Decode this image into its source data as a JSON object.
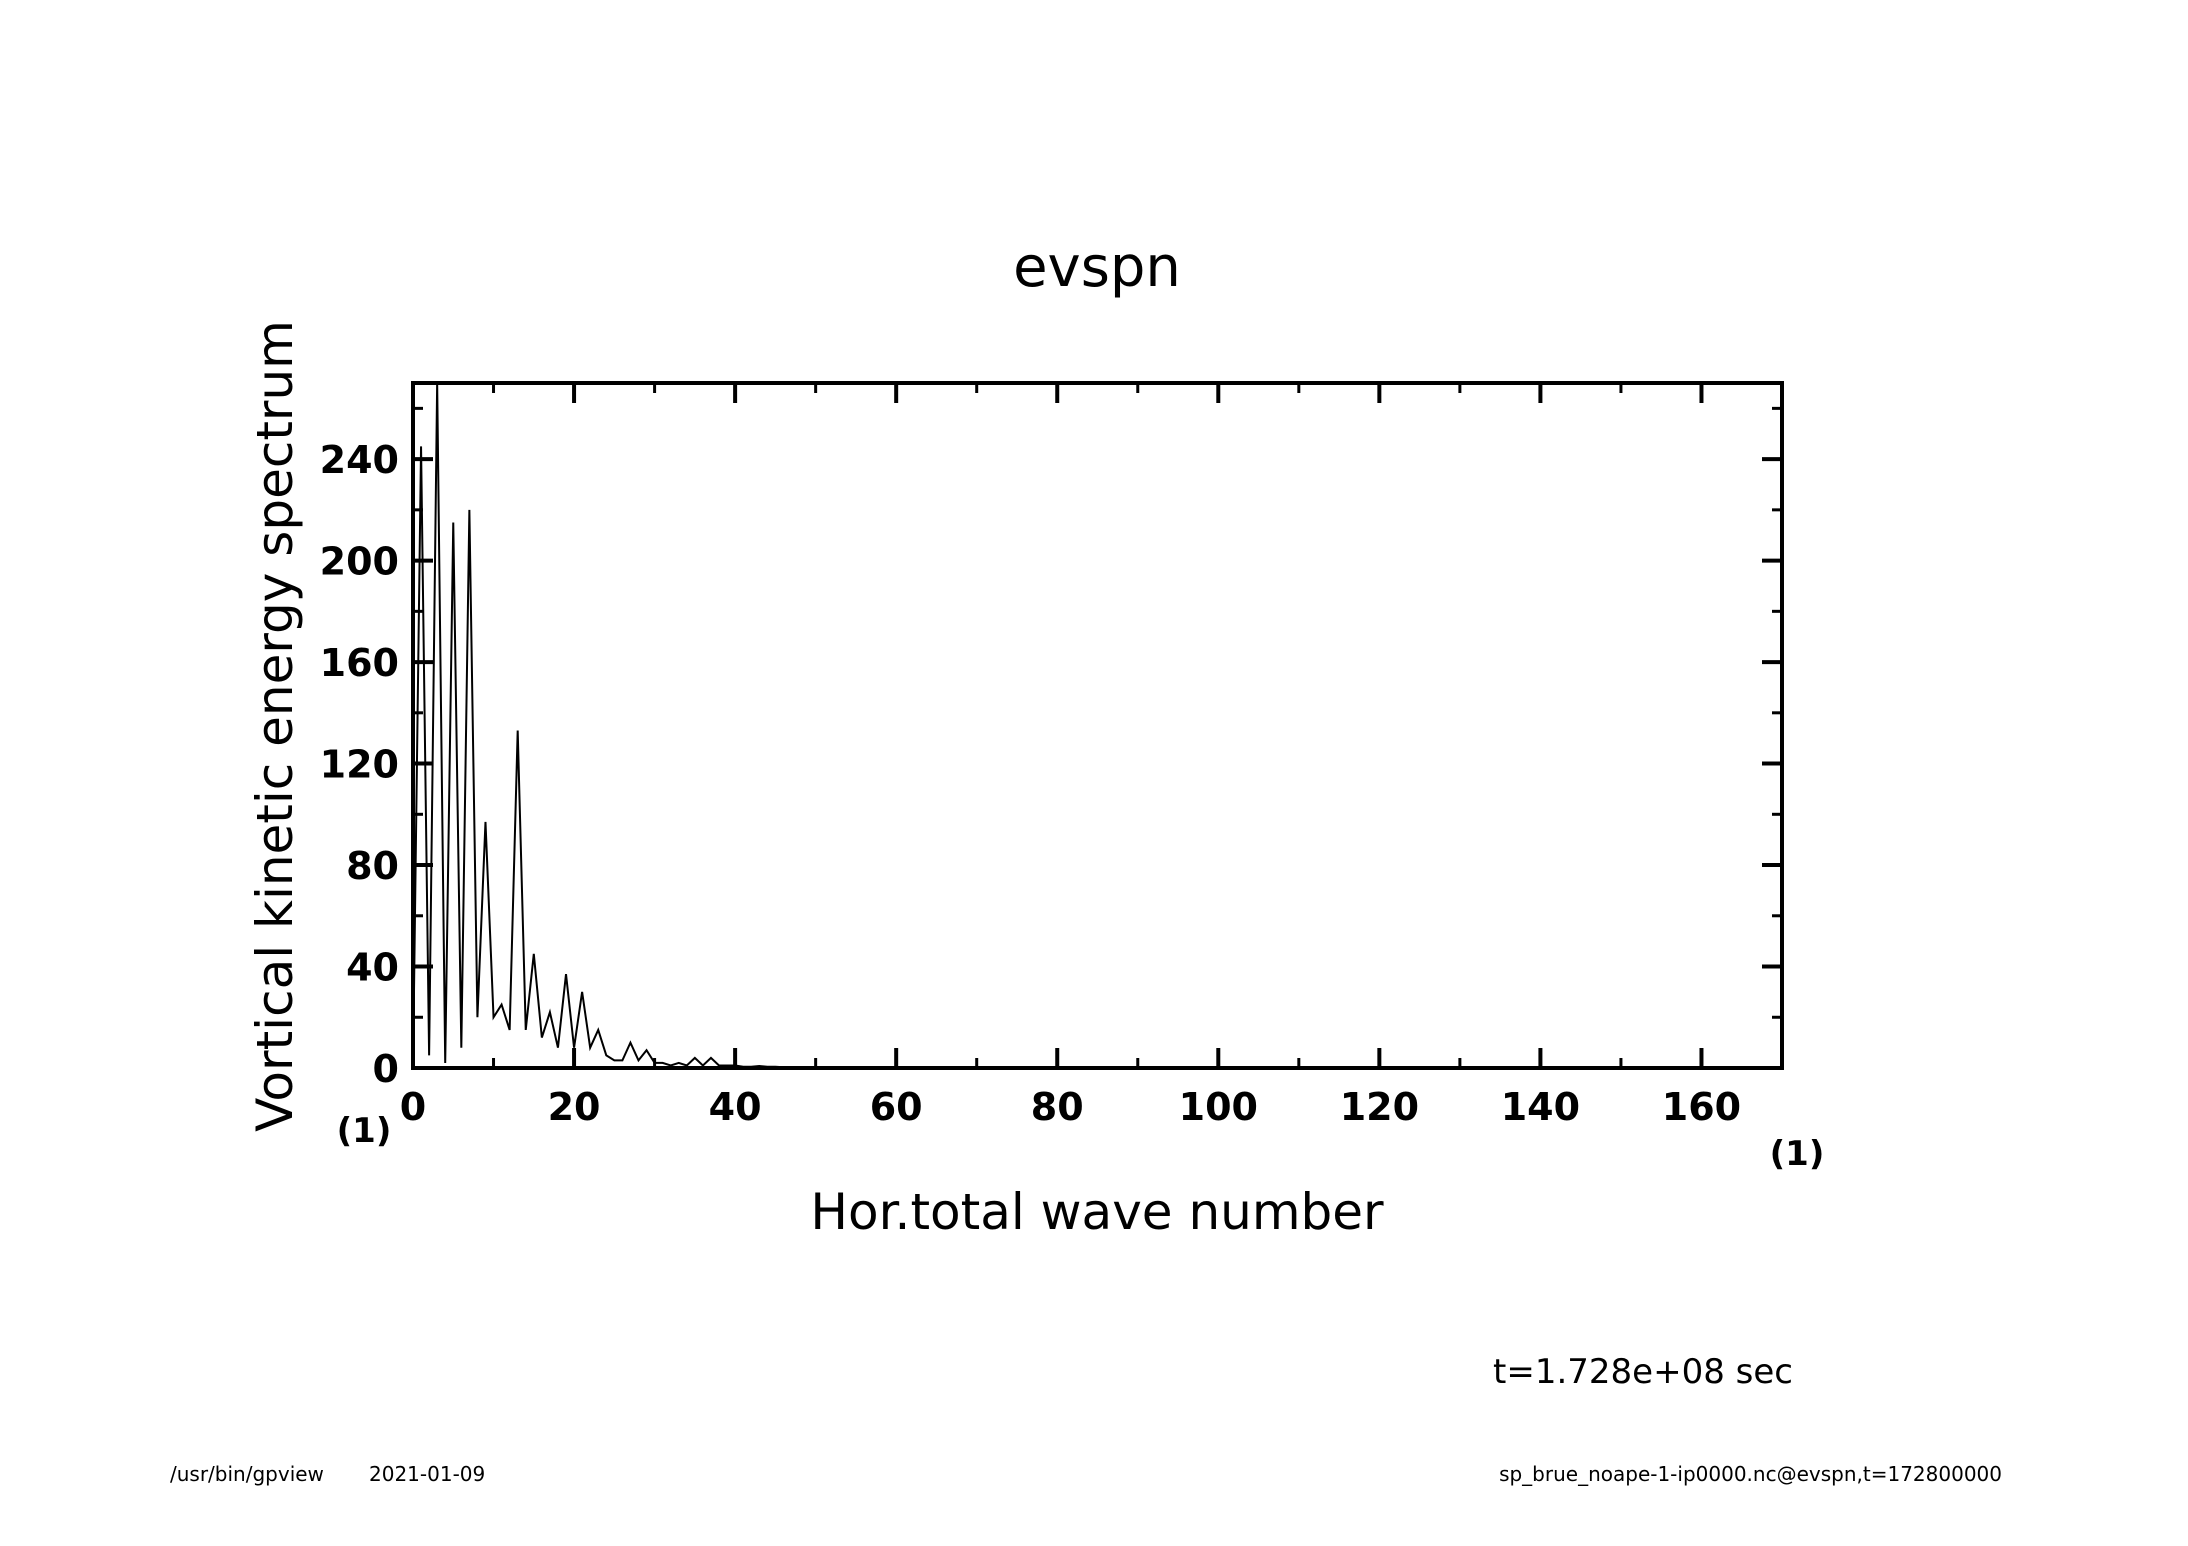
{
  "footer": {
    "left_program": "/usr/bin/gpview",
    "left_date": "2021-01-09",
    "right_source": "sp_brue_noape-1-ip0000.nc@evspn,t=172800000"
  },
  "time_label": "t=1.728e+08 sec",
  "chart_data": {
    "type": "line",
    "title": "evspn",
    "xlabel": "Hor.total wave number",
    "ylabel": "Vortical kinetic energy spectrum",
    "x_unit": "(1)",
    "y_unit": "(1)",
    "xlim": [
      0,
      170
    ],
    "ylim": [
      0,
      270
    ],
    "xticks": [
      0,
      20,
      40,
      60,
      80,
      100,
      120,
      140,
      160
    ],
    "yticks": [
      0,
      40,
      80,
      120,
      160,
      200,
      240
    ],
    "grid": false,
    "line_color": "#000000",
    "series": [
      {
        "x": [
          0,
          1,
          2,
          3,
          4,
          5,
          6,
          7,
          8,
          9,
          10,
          11,
          12,
          13,
          14,
          15,
          16,
          17,
          18,
          19,
          20,
          21,
          22,
          23,
          24,
          25,
          26,
          27,
          28,
          29,
          30,
          31,
          32,
          33,
          34,
          35,
          36,
          37,
          38,
          39,
          40,
          41,
          42,
          43,
          44,
          45,
          46,
          47,
          48,
          49,
          50,
          51,
          52,
          53,
          54,
          55,
          56,
          57,
          58,
          59,
          60,
          61,
          62,
          63,
          64,
          65,
          66,
          67,
          68,
          69,
          70,
          71,
          72,
          73,
          74,
          75,
          76,
          77,
          78,
          79,
          80,
          81,
          82,
          83,
          84,
          85,
          86,
          87,
          88,
          89,
          90,
          91,
          92,
          93,
          94,
          95,
          96,
          97,
          98,
          99,
          100,
          101,
          102,
          103,
          104,
          105,
          106,
          107,
          108,
          109,
          110,
          111,
          112,
          113,
          114,
          115,
          116,
          117,
          118,
          119,
          120,
          121,
          122,
          123,
          124,
          125,
          126,
          127,
          128,
          129,
          130,
          131,
          132,
          133,
          134,
          135,
          136,
          137,
          138,
          139,
          140,
          141,
          142,
          143,
          144,
          145,
          146,
          147,
          148,
          149,
          150,
          151,
          152,
          153,
          154,
          155,
          156,
          157,
          158,
          159,
          160,
          161,
          162,
          163,
          164,
          165,
          166,
          167,
          168,
          169,
          170
        ],
        "y": [
          0,
          245,
          5,
          270,
          2,
          215,
          8,
          220,
          20,
          97,
          20,
          25,
          15,
          133,
          15,
          45,
          12,
          22,
          8,
          37,
          8,
          30,
          8,
          15,
          5,
          3,
          3,
          10,
          3,
          7,
          2,
          2,
          1,
          2,
          1,
          4,
          1,
          4,
          1,
          1,
          1,
          0.5,
          0.5,
          0.8,
          0.5,
          0.5,
          0.3,
          0.3,
          0.2,
          0.2,
          0.2,
          0.1,
          0.1,
          0.1,
          0.1,
          0,
          0,
          0,
          0,
          0,
          0,
          0,
          0,
          0,
          0,
          0,
          0,
          0,
          0,
          0,
          0,
          0,
          0,
          0,
          0,
          0,
          0,
          0,
          0,
          0,
          0,
          0,
          0,
          0,
          0,
          0,
          0,
          0,
          0,
          0,
          0,
          0,
          0,
          0,
          0,
          0,
          0,
          0,
          0,
          0,
          0,
          0,
          0,
          0,
          0,
          0,
          0,
          0,
          0,
          0,
          0,
          0,
          0,
          0,
          0,
          0,
          0,
          0,
          0,
          0,
          0,
          0,
          0,
          0,
          0,
          0,
          0,
          0,
          0,
          0,
          0,
          0,
          0,
          0,
          0,
          0,
          0,
          0,
          0,
          0,
          0,
          0,
          0,
          0,
          0,
          0,
          0,
          0,
          0,
          0,
          0,
          0,
          0,
          0,
          0,
          0,
          0,
          0,
          0,
          0,
          0,
          0,
          0,
          0,
          0,
          0,
          0,
          0,
          0,
          0,
          0
        ]
      }
    ]
  }
}
